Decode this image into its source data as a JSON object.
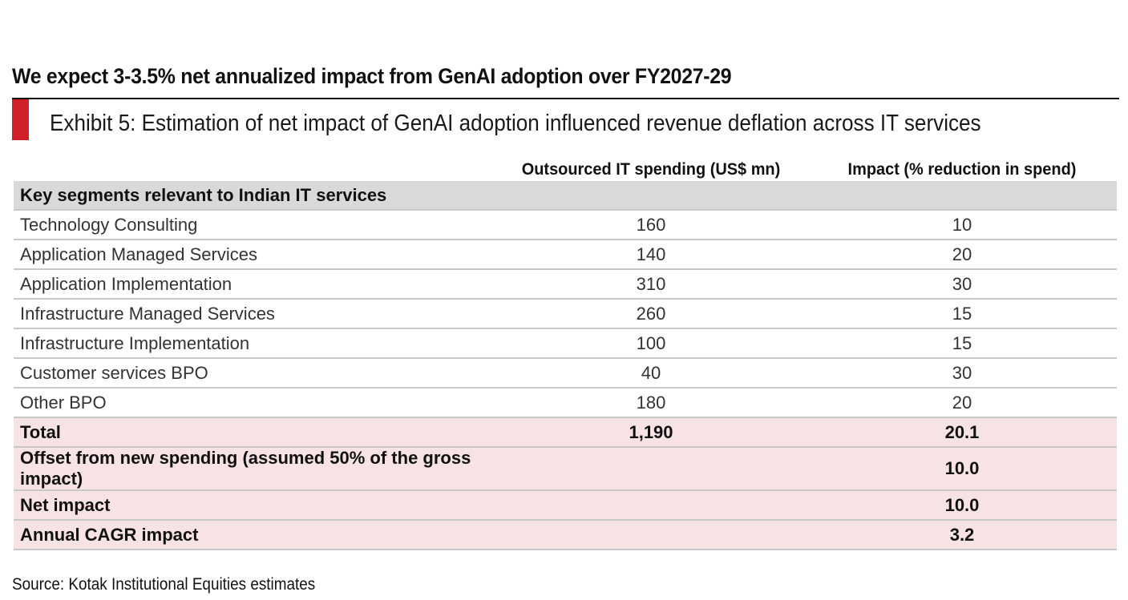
{
  "headline": "We expect 3-3.5% net annualized impact from GenAI adoption over FY2027-29",
  "exhibit_title": "Exhibit 5: Estimation of net impact of GenAI adoption influenced revenue deflation across IT services",
  "columns": [
    "",
    "Outsourced IT spending (US$ mn)",
    "Impact (% reduction in spend)"
  ],
  "section_label": "Key segments relevant to Indian IT services",
  "rows": [
    {
      "label": "Technology Consulting",
      "spend": "160",
      "impact": "10"
    },
    {
      "label": "Application Managed Services",
      "spend": "140",
      "impact": "20"
    },
    {
      "label": "Application Implementation",
      "spend": "310",
      "impact": "30"
    },
    {
      "label": "Infrastructure Managed Services",
      "spend": "260",
      "impact": "15"
    },
    {
      "label": "Infrastructure Implementation",
      "spend": "100",
      "impact": "15"
    },
    {
      "label": "Customer services BPO",
      "spend": "40",
      "impact": "30"
    },
    {
      "label": "Other BPO",
      "spend": "180",
      "impact": "20"
    }
  ],
  "summary": [
    {
      "label": "Total",
      "spend": "1,190",
      "impact": "20.1"
    },
    {
      "label": "Offset from new spending (assumed 50% of the gross impact)",
      "spend": "",
      "impact": "10.0"
    },
    {
      "label": "Net impact",
      "spend": "",
      "impact": "10.0"
    },
    {
      "label": "Annual CAGR impact",
      "spend": "",
      "impact": "3.2"
    }
  ],
  "source": "Source: Kotak Institutional Equities estimates",
  "colors": {
    "accent": "#d0202a",
    "section_bg": "#d9d9d9",
    "summary_bg": "#f8e3e4"
  }
}
